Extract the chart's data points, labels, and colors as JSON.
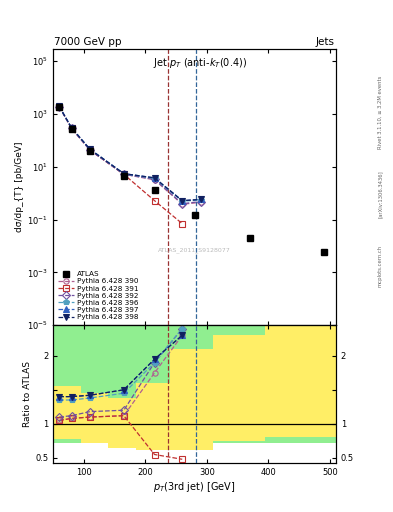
{
  "title_top_left": "7000 GeV pp",
  "title_top_right": "Jets",
  "xlabel": "p_{T}(3rd jet) [GeV]",
  "ylabel_main": "dσ/dp_{T} [pb/GeV]",
  "ylabel_ratio": "Ratio to ATLAS",
  "watermark": "ATLAS_2011_S9128077",
  "xlim": [
    50,
    510
  ],
  "ylim_main": [
    1e-05,
    300000.0
  ],
  "ylim_ratio": [
    0.42,
    2.45
  ],
  "rivet_text": "Rivet 3.1.10, ≥ 3.2M events",
  "arxiv_text": "[arXiv:1306.3436]",
  "mcplots_text": "mcplots.cern.ch",
  "atlas_x": [
    60,
    80,
    110,
    165,
    215,
    280,
    370,
    490
  ],
  "atlas_y": [
    1800,
    270,
    40,
    4.5,
    1.3,
    0.15,
    0.02,
    0.006
  ],
  "pythia_x": [
    60,
    80,
    110,
    165,
    215,
    260,
    290
  ],
  "p390_color": "#b06090",
  "p390_marker": "o",
  "p390_filled": false,
  "p390_y": [
    1900,
    290,
    43,
    5.2,
    3.2,
    0.38,
    0.45
  ],
  "p391_color": "#c03030",
  "p391_marker": "s",
  "p391_filled": false,
  "p391_y": [
    1900,
    290,
    43,
    5.2,
    0.52,
    0.07,
    null
  ],
  "p392_color": "#7050a0",
  "p392_marker": "D",
  "p392_filled": false,
  "p392_y": [
    1900,
    290,
    43,
    5.2,
    3.4,
    0.4,
    0.48
  ],
  "p396_color": "#50a0c0",
  "p396_marker": "p",
  "p396_filled": true,
  "p396_y": [
    1950,
    300,
    46,
    5.5,
    3.6,
    0.5,
    0.55
  ],
  "p397_color": "#3060c0",
  "p397_marker": "^",
  "p397_filled": true,
  "p397_y": [
    1950,
    300,
    46,
    5.5,
    3.8,
    0.52,
    0.58
  ],
  "p398_color": "#102060",
  "p398_marker": "v",
  "p398_filled": true,
  "p398_y": [
    1950,
    300,
    46,
    5.5,
    3.8,
    0.52,
    0.58
  ],
  "ratio_x": [
    60,
    80,
    110,
    165,
    215,
    260
  ],
  "r390_y": [
    1.05,
    1.08,
    1.1,
    1.12,
    1.75,
    2.3
  ],
  "r391_y": [
    1.05,
    1.08,
    1.1,
    1.12,
    0.55,
    0.48
  ],
  "r392_y": [
    1.1,
    1.12,
    1.18,
    1.2,
    1.9,
    2.4
  ],
  "r396_y": [
    1.35,
    1.35,
    1.38,
    1.45,
    1.9,
    2.4
  ],
  "r397_y": [
    1.4,
    1.4,
    1.42,
    1.5,
    1.95,
    2.3
  ],
  "r398_y": [
    1.4,
    1.4,
    1.42,
    1.5,
    1.95,
    2.3
  ],
  "band_green_edges": [
    50,
    95,
    140,
    185,
    240,
    310,
    395,
    510
  ],
  "band_green_lo": [
    0.72,
    0.72,
    0.72,
    0.72,
    0.72,
    0.72,
    0.72,
    0.72
  ],
  "band_green_hi": [
    2.44,
    2.44,
    2.44,
    2.44,
    2.44,
    2.44,
    2.44,
    2.44
  ],
  "band_yellow_edges": [
    50,
    95,
    140,
    185,
    240,
    310,
    395,
    510
  ],
  "band_yellow_lo": [
    0.78,
    0.72,
    0.65,
    0.62,
    0.62,
    0.75,
    0.8,
    0.8
  ],
  "band_yellow_hi": [
    1.55,
    1.45,
    1.38,
    1.6,
    2.1,
    2.3,
    2.44,
    2.44
  ],
  "vline_red_x": 237,
  "vline_blue_x": 283,
  "bg_color": "#ffffff"
}
